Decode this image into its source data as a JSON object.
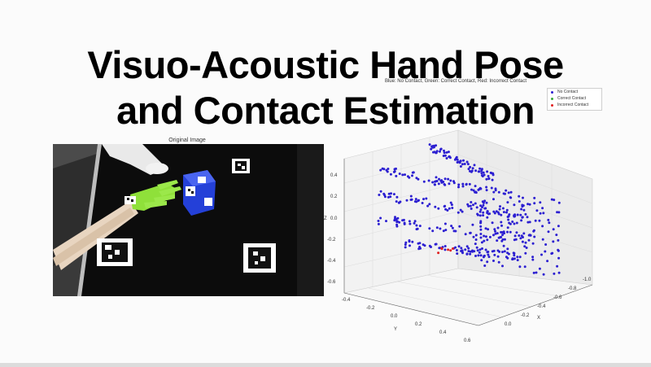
{
  "slide": {
    "title_line1": "Visuo-Acoustic Hand Pose",
    "title_line2": "and Contact Estimation"
  },
  "left_panel": {
    "caption": "Original Image"
  },
  "right_panel": {
    "caption": "Blue: No Contact, Green: Correct Contact, Red: Incorrect Contact",
    "legend": [
      {
        "label": "No Contact",
        "color": "#2c1fd1"
      },
      {
        "label": "Correct Contact",
        "color": "#3aa83a"
      },
      {
        "label": "Incorrect Contact",
        "color": "#e02020"
      }
    ],
    "axes": {
      "x_label": "X",
      "y_label": "Y",
      "z_label": "Z",
      "z_ticks": [
        "0.4",
        "0.2",
        "0.0",
        "-0.2",
        "-0.4",
        "-0.6"
      ],
      "y_ticks": [
        "-0.4",
        "-0.2",
        "0.0",
        "0.2",
        "0.4",
        "0.6"
      ],
      "x_ticks": [
        "-1.0",
        "-0.8",
        "-0.6",
        "-0.4",
        "-0.2",
        "0.0"
      ]
    }
  },
  "colors": {
    "point_blue": "#2c1fd1",
    "point_red": "#e02020",
    "glove_green": "#8fe03a",
    "box_blue": "#2440d8"
  }
}
